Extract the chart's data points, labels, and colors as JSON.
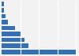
{
  "values": [
    54600,
    19500,
    17000,
    14200,
    9800,
    4500,
    3000,
    1900,
    1500
  ],
  "bar_color": "#3470b2",
  "background_color": "#f2f2f2",
  "plot_bg_color": "#f2f2f2",
  "grid_color": "#ffffff",
  "figsize": [
    1.0,
    0.71
  ],
  "dpi": 100,
  "bar_height": 0.75
}
